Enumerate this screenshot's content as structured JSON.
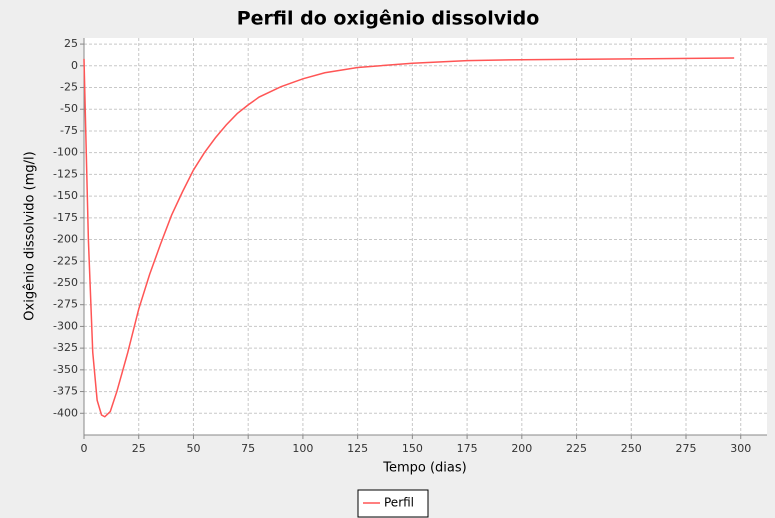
{
  "chart_data": {
    "type": "line",
    "title": "Perfil do oxigênio dissolvido",
    "x_label": "Tempo (dias)",
    "y_label": "Oxigênio dissolvido (mg/l)",
    "x": [
      0,
      2,
      4,
      6,
      8,
      9.5,
      12,
      15,
      20,
      25,
      30,
      35,
      40,
      45,
      50,
      55,
      60,
      65,
      70,
      75,
      80,
      90,
      100,
      110,
      125,
      150,
      175,
      200,
      250,
      297
    ],
    "series": [
      {
        "name": "Perfil",
        "color": "#ff5555",
        "values": [
          8,
          -200,
          -330,
          -385,
          -402,
          -404,
          -398,
          -375,
          -330,
          -280,
          -240,
          -205,
          -172,
          -145,
          -120,
          -100,
          -83,
          -68,
          -55,
          -45,
          -36,
          -24,
          -15,
          -8,
          -2,
          3,
          6,
          7,
          8,
          9
        ]
      }
    ],
    "xlim": [
      0,
      312
    ],
    "ylim": [
      -425,
      32
    ],
    "xticks": [
      0,
      25,
      50,
      75,
      100,
      125,
      150,
      175,
      200,
      225,
      250,
      275,
      300
    ],
    "yticks": [
      25,
      0,
      -25,
      -50,
      -75,
      -100,
      -125,
      -150,
      -175,
      -200,
      -225,
      -250,
      -275,
      -300,
      -325,
      -350,
      -375,
      -400
    ],
    "grid": true,
    "legend": "bottom"
  }
}
